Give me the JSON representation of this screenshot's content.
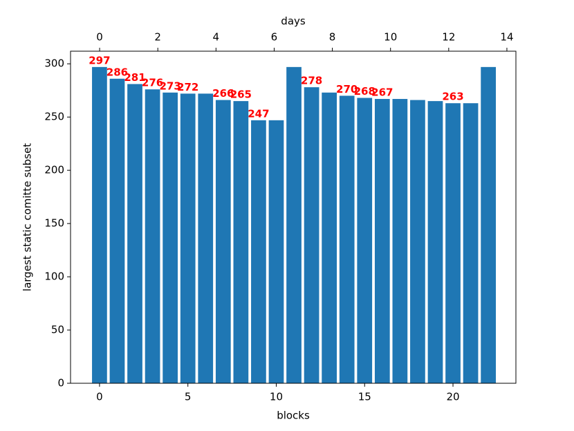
{
  "chart_data": {
    "type": "bar",
    "xlabel": "blocks",
    "ylabel": "largest static comitte subset",
    "x2label": "days",
    "categories": [
      0,
      1,
      2,
      3,
      4,
      5,
      6,
      7,
      8,
      9,
      10,
      11,
      12,
      13,
      14,
      15,
      16,
      17,
      18,
      19,
      20,
      21,
      22
    ],
    "values": [
      297,
      286,
      281,
      276,
      273,
      272,
      272,
      266,
      265,
      247,
      247,
      297,
      278,
      273,
      270,
      268,
      267,
      267,
      266,
      265,
      263,
      263,
      297
    ],
    "value_labels": [
      "297",
      "286",
      "281",
      "276",
      "273",
      "272",
      null,
      "266",
      "265",
      "247",
      null,
      null,
      "278",
      null,
      "270",
      "268",
      "267",
      null,
      null,
      null,
      "263",
      null,
      null
    ],
    "color": "#1f77b4",
    "label_color": "#ff0000",
    "xlim": [
      -1.64,
      23.56
    ],
    "xticks": [
      0,
      5,
      10,
      15,
      20
    ],
    "x2lim": [
      -1.0,
      14.31
    ],
    "x2ticks": [
      0,
      2,
      4,
      6,
      8,
      10,
      12,
      14
    ],
    "ylim": [
      0,
      311.85
    ],
    "yticks": [
      0,
      50,
      100,
      150,
      200,
      250,
      300
    ]
  }
}
